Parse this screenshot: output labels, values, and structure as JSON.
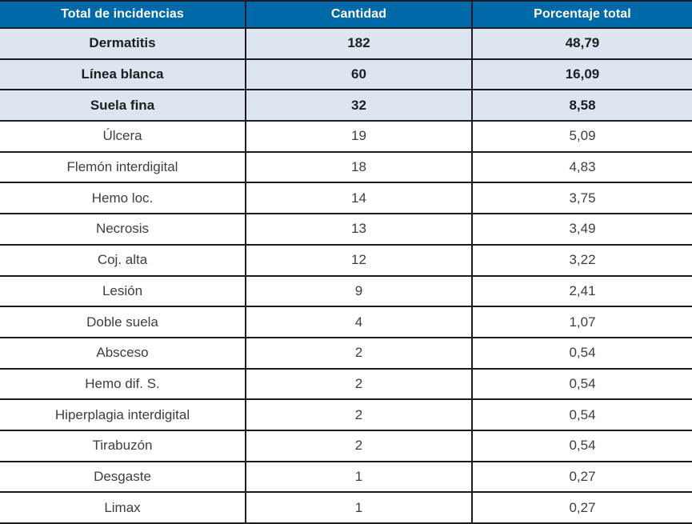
{
  "table": {
    "headers": {
      "incidence": "Total de incidencias",
      "count": "Cantidad",
      "percentage": "Porcentaje total"
    },
    "rows": [
      {
        "name": "Dermatitis",
        "count": "182",
        "pct": "48,79"
      },
      {
        "name": "Línea blanca",
        "count": "60",
        "pct": "16,09"
      },
      {
        "name": "Suela fina",
        "count": "32",
        "pct": "8,58"
      },
      {
        "name": "Úlcera",
        "count": "19",
        "pct": "5,09"
      },
      {
        "name": "Flemón interdigital",
        "count": "18",
        "pct": "4,83"
      },
      {
        "name": "Hemo loc.",
        "count": "14",
        "pct": "3,75"
      },
      {
        "name": "Necrosis",
        "count": "13",
        "pct": "3,49"
      },
      {
        "name": "Coj. alta",
        "count": "12",
        "pct": "3,22"
      },
      {
        "name": "Lesión",
        "count": "9",
        "pct": "2,41"
      },
      {
        "name": "Doble suela",
        "count": "4",
        "pct": "1,07"
      },
      {
        "name": "Absceso",
        "count": "2",
        "pct": "0,54"
      },
      {
        "name": "Hemo dif. S.",
        "count": "2",
        "pct": "0,54"
      },
      {
        "name": "Hiperplagia interdigital",
        "count": "2",
        "pct": "0,54"
      },
      {
        "name": "Tirabuzón",
        "count": "2",
        "pct": "0,54"
      },
      {
        "name": "Desgaste",
        "count": "1",
        "pct": "0,27"
      },
      {
        "name": "Limax",
        "count": "1",
        "pct": "0,27"
      }
    ]
  },
  "colors": {
    "header_bg": "#0069a8",
    "header_text": "#ffffff",
    "highlight_row_bg": "#dbe6f1",
    "highlight_row_text": "#1e1e1e",
    "row_bg": "#ffffff",
    "row_text": "#3e3e3e",
    "grid_line": "#1c1c26"
  },
  "chart_data": {
    "type": "table",
    "title": "",
    "columns": [
      "Total de incidencias",
      "Cantidad",
      "Porcentaje total"
    ],
    "categories": [
      "Dermatitis",
      "Línea blanca",
      "Suela fina",
      "Úlcera",
      "Flemón interdigital",
      "Hemo loc.",
      "Necrosis",
      "Coj. alta",
      "Lesión",
      "Doble suela",
      "Absceso",
      "Hemo dif. S.",
      "Hiperplagia interdigital",
      "Tirabuzón",
      "Desgaste",
      "Limax"
    ],
    "counts": [
      182,
      60,
      32,
      19,
      18,
      14,
      13,
      12,
      9,
      4,
      2,
      2,
      2,
      2,
      1,
      1
    ],
    "percentages": [
      48.79,
      16.09,
      8.58,
      5.09,
      4.83,
      3.75,
      3.49,
      3.22,
      2.41,
      1.07,
      0.54,
      0.54,
      0.54,
      0.54,
      0.27,
      0.27
    ],
    "decimal_separator": ",",
    "highlighted_rows": [
      "Dermatitis",
      "Línea blanca",
      "Suela fina"
    ]
  }
}
